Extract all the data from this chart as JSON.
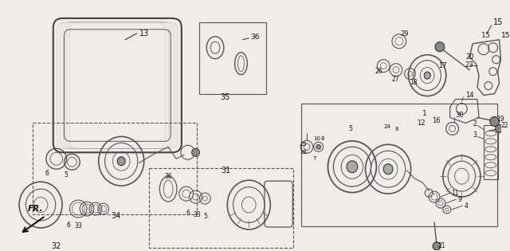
{
  "bg_color": "#f0ede8",
  "line_color": "#1a1a1a",
  "gray": "#555555",
  "light_gray": "#888888",
  "fig_w": 6.4,
  "fig_h": 3.15,
  "dpi": 100
}
